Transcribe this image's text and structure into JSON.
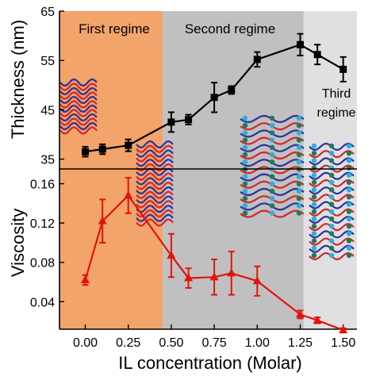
{
  "chart_data": [
    {
      "type": "line",
      "panel": "top",
      "ylabel": "Thickness (nm)",
      "ylim": [
        33,
        65
      ],
      "yticks": [
        35,
        45,
        55,
        65
      ],
      "series": [
        {
          "color": "#000000",
          "marker": "square",
          "x": [
            0.0,
            0.1,
            0.25,
            0.5,
            0.6,
            0.75,
            0.85,
            1.0,
            1.25,
            1.35,
            1.5
          ],
          "y": [
            36.5,
            37.0,
            37.8,
            42.5,
            43.0,
            47.5,
            49.0,
            55.2,
            58.2,
            56.2,
            53.2
          ],
          "err": [
            1.0,
            1.0,
            1.2,
            2.0,
            1.0,
            3.0,
            0.8,
            1.5,
            2.2,
            2.0,
            2.5
          ]
        }
      ]
    },
    {
      "type": "line",
      "panel": "bottom",
      "xlabel": "IL concentration (Molar)",
      "ylabel": "Viscosity",
      "xlim": [
        -0.15,
        1.58
      ],
      "xticks": [
        "0.00",
        "0.25",
        "0.50",
        "0.75",
        "1.00",
        "1.25",
        "1.50"
      ],
      "xtick_values": [
        0,
        0.25,
        0.5,
        0.75,
        1.0,
        1.25,
        1.5
      ],
      "ylim": [
        0.012,
        0.175
      ],
      "yticks": [
        "0.04",
        "0.08",
        "0.12",
        "0.16"
      ],
      "ytick_values": [
        0.04,
        0.08,
        0.12,
        0.16
      ],
      "series": [
        {
          "color": "#e3130c",
          "marker": "triangle",
          "x": [
            0.0,
            0.1,
            0.25,
            0.5,
            0.6,
            0.75,
            0.85,
            1.0,
            1.25,
            1.35,
            1.5
          ],
          "y": [
            0.062,
            0.122,
            0.148,
            0.087,
            0.064,
            0.065,
            0.069,
            0.061,
            0.027,
            0.021,
            0.011
          ],
          "err": [
            0.005,
            0.022,
            0.018,
            0.022,
            0.01,
            0.018,
            0.022,
            0.015,
            0.004,
            0.003,
            0.002
          ]
        }
      ]
    }
  ],
  "regimes": [
    {
      "label": "First regime",
      "from": -0.15,
      "to": 0.45,
      "color": "#f2a46a"
    },
    {
      "label": "Second regime",
      "from": 0.45,
      "to": 1.27,
      "color": "#c0c0c1"
    },
    {
      "label_line1": "Third",
      "label_line2": "regime",
      "from": 1.27,
      "to": 1.58,
      "color": "#e0e0e2"
    }
  ],
  "illustration_colors": {
    "chain_a": "#2f3199",
    "chain_b": "#d3262c",
    "ion_a": "#29b0e0",
    "ion_b": "#1f7a5a"
  }
}
